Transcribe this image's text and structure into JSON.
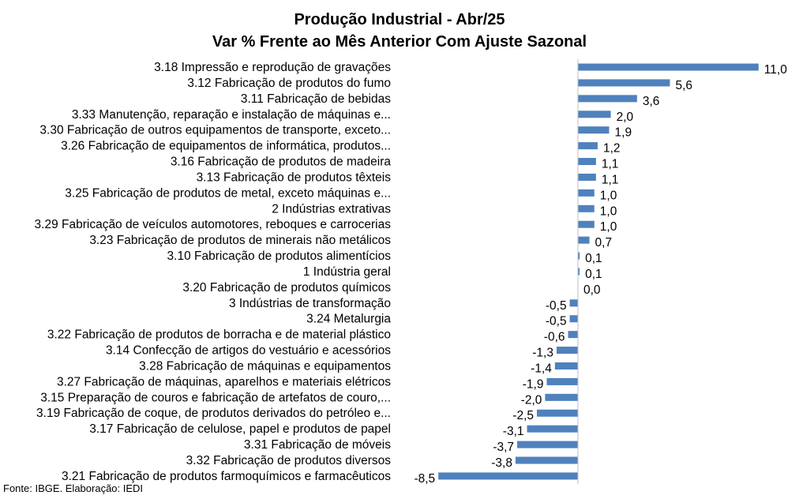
{
  "title": "Produção Industrial - Abr/25",
  "subtitle": "Var % Frente ao Mês Anterior Com Ajuste Sazonal",
  "source": "Fonte: IBGE. Elaboração: IEDI",
  "colors": {
    "bar": "#4F81BD",
    "axis": "#BFBFBF"
  },
  "chart_data": {
    "type": "bar",
    "orientation": "horizontal",
    "title": "Produção Industrial - Abr/25",
    "subtitle": "Var % Frente ao Mês Anterior Com Ajuste Sazonal",
    "xlim": [
      -9,
      12
    ],
    "grid": false,
    "categories": [
      "3.18 Impressão e reprodução de gravações",
      "3.12 Fabricação de produtos do fumo",
      "3.11 Fabricação de bebidas",
      "3.33 Manutenção, reparação e instalação de máquinas e...",
      "3.30 Fabricação de outros equipamentos de transporte, exceto...",
      "3.26 Fabricação de equipamentos de informática, produtos...",
      "3.16 Fabricação de produtos de madeira",
      "3.13 Fabricação de produtos têxteis",
      "3.25 Fabricação de produtos de metal, exceto máquinas e...",
      "2 Indústrias extrativas",
      "3.29 Fabricação de veículos automotores, reboques e carrocerias",
      "3.23 Fabricação de produtos de minerais não metálicos",
      "3.10 Fabricação de produtos alimentícios",
      "1 Indústria geral",
      "3.20 Fabricação de produtos químicos",
      "3 Indústrias de transformação",
      "3.24 Metalurgia",
      "3.22 Fabricação de produtos de borracha e de material plástico",
      "3.14 Confecção de artigos do vestuário e acessórios",
      "3.28 Fabricação de máquinas e equipamentos",
      "3.27 Fabricação de máquinas, aparelhos e materiais elétricos",
      "3.15 Preparação de couros e fabricação de artefatos de couro,...",
      "3.19 Fabricação de coque, de produtos derivados do petróleo e...",
      "3.17 Fabricação de celulose, papel e produtos de papel",
      "3.31 Fabricação de móveis",
      "3.32 Fabricação de produtos diversos",
      "3.21 Fabricação de produtos farmoquímicos e farmacêuticos"
    ],
    "values": [
      11.0,
      5.6,
      3.6,
      2.0,
      1.9,
      1.2,
      1.1,
      1.1,
      1.0,
      1.0,
      1.0,
      0.7,
      0.1,
      0.1,
      0.0,
      -0.5,
      -0.5,
      -0.6,
      -1.3,
      -1.4,
      -1.9,
      -2.0,
      -2.5,
      -3.1,
      -3.7,
      -3.8,
      -8.5
    ],
    "value_labels": [
      "11,0",
      "5,6",
      "3,6",
      "2,0",
      "1,9",
      "1,2",
      "1,1",
      "1,1",
      "1,0",
      "1,0",
      "1,0",
      "0,7",
      "0,1",
      "0,1",
      "0,0",
      "-0,5",
      "-0,5",
      "-0,6",
      "-1,3",
      "-1,4",
      "-1,9",
      "-2,0",
      "-2,5",
      "-3,1",
      "-3,7",
      "-3,8",
      "-8,5"
    ]
  }
}
